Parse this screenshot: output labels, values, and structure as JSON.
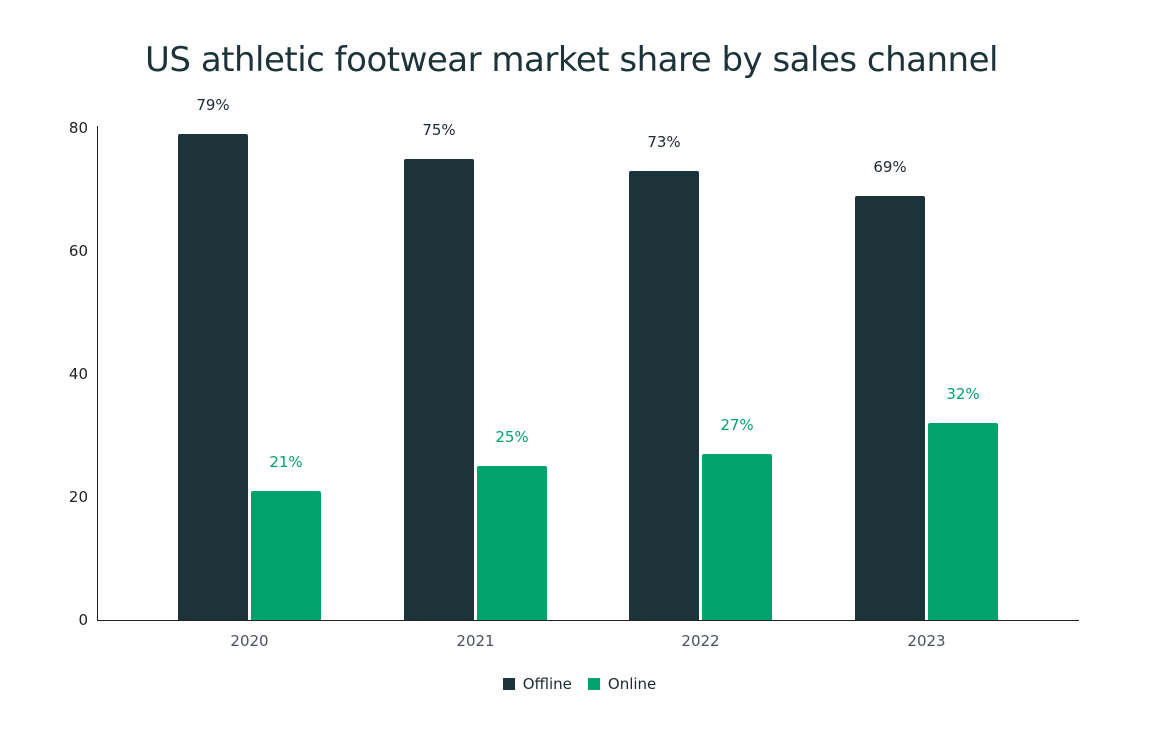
{
  "chart_data": {
    "type": "bar",
    "title": "US athletic footwear market share by sales channel",
    "xlabel": "",
    "ylabel": "",
    "categories": [
      "2020",
      "2021",
      "2022",
      "2023"
    ],
    "series": [
      {
        "name": "Offline",
        "color": "#1c333a",
        "values": [
          79,
          75,
          73,
          69
        ],
        "labels": [
          "79%",
          "75%",
          "73%",
          "69%"
        ]
      },
      {
        "name": "Online",
        "color": "#00a36c",
        "values": [
          21,
          25,
          27,
          32
        ],
        "labels": [
          "21%",
          "25%",
          "27%",
          "32%"
        ]
      }
    ],
    "ylim": [
      0,
      80
    ],
    "yticks": [
      0,
      20,
      40,
      60,
      80
    ],
    "grid": false,
    "legend_position": "bottom"
  },
  "legend": {
    "items": [
      {
        "label": "Offline",
        "color": "#1c333a"
      },
      {
        "label": "Online",
        "color": "#00a36c"
      }
    ]
  }
}
